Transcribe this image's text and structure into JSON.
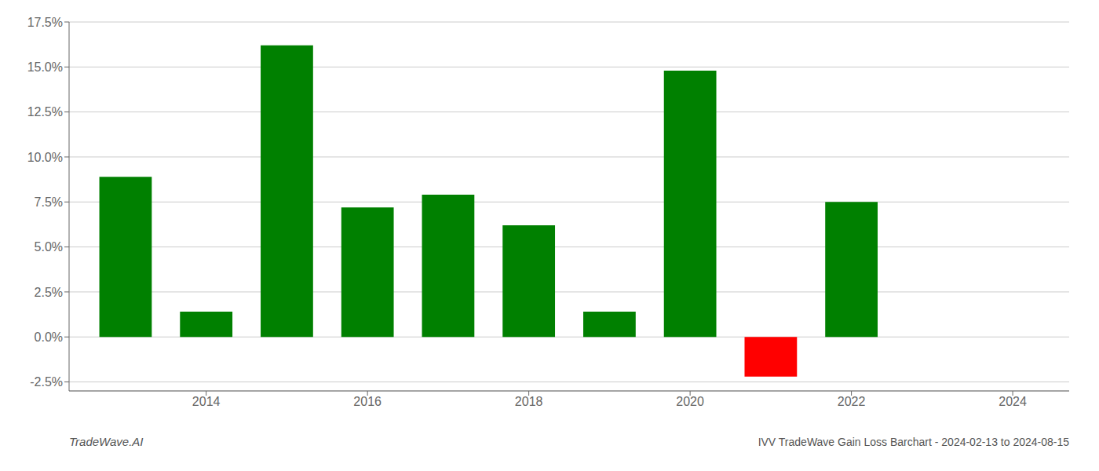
{
  "chart_data": {
    "type": "bar",
    "title": "IVV TradeWave Gain Loss Barchart - 2024-02-13 to 2024-08-15",
    "annotations": [
      {
        "text": "TradeWave.AI"
      }
    ],
    "x": [
      2013,
      2014,
      2015,
      2016,
      2017,
      2018,
      2019,
      2020,
      2021,
      2022,
      2023
    ],
    "values": [
      0.089,
      0.014,
      0.162,
      0.072,
      0.079,
      0.062,
      0.014,
      0.148,
      -0.022,
      0.075,
      0.0
    ],
    "colors": [
      "#008000",
      "#008000",
      "#008000",
      "#008000",
      "#008000",
      "#008000",
      "#008000",
      "#008000",
      "#ff0000",
      "#008000",
      "#ffffff"
    ],
    "xlim": [
      2012.3,
      2024.7
    ],
    "xticks": [
      2014,
      2016,
      2018,
      2020,
      2022,
      2024
    ],
    "ylim": [
      -0.03,
      0.175
    ],
    "yticks": [
      {
        "value": -0.025,
        "label": "-2.5%"
      },
      {
        "value": 0.0,
        "label": "0.0%"
      },
      {
        "value": 0.025,
        "label": "2.5%"
      },
      {
        "value": 0.05,
        "label": "5.0%"
      },
      {
        "value": 0.075,
        "label": "7.5%"
      },
      {
        "value": 0.1,
        "label": "10.0%"
      },
      {
        "value": 0.125,
        "label": "12.5%"
      },
      {
        "value": 0.15,
        "label": "15.0%"
      },
      {
        "value": 0.175,
        "label": "17.5%"
      }
    ],
    "grid": true
  }
}
